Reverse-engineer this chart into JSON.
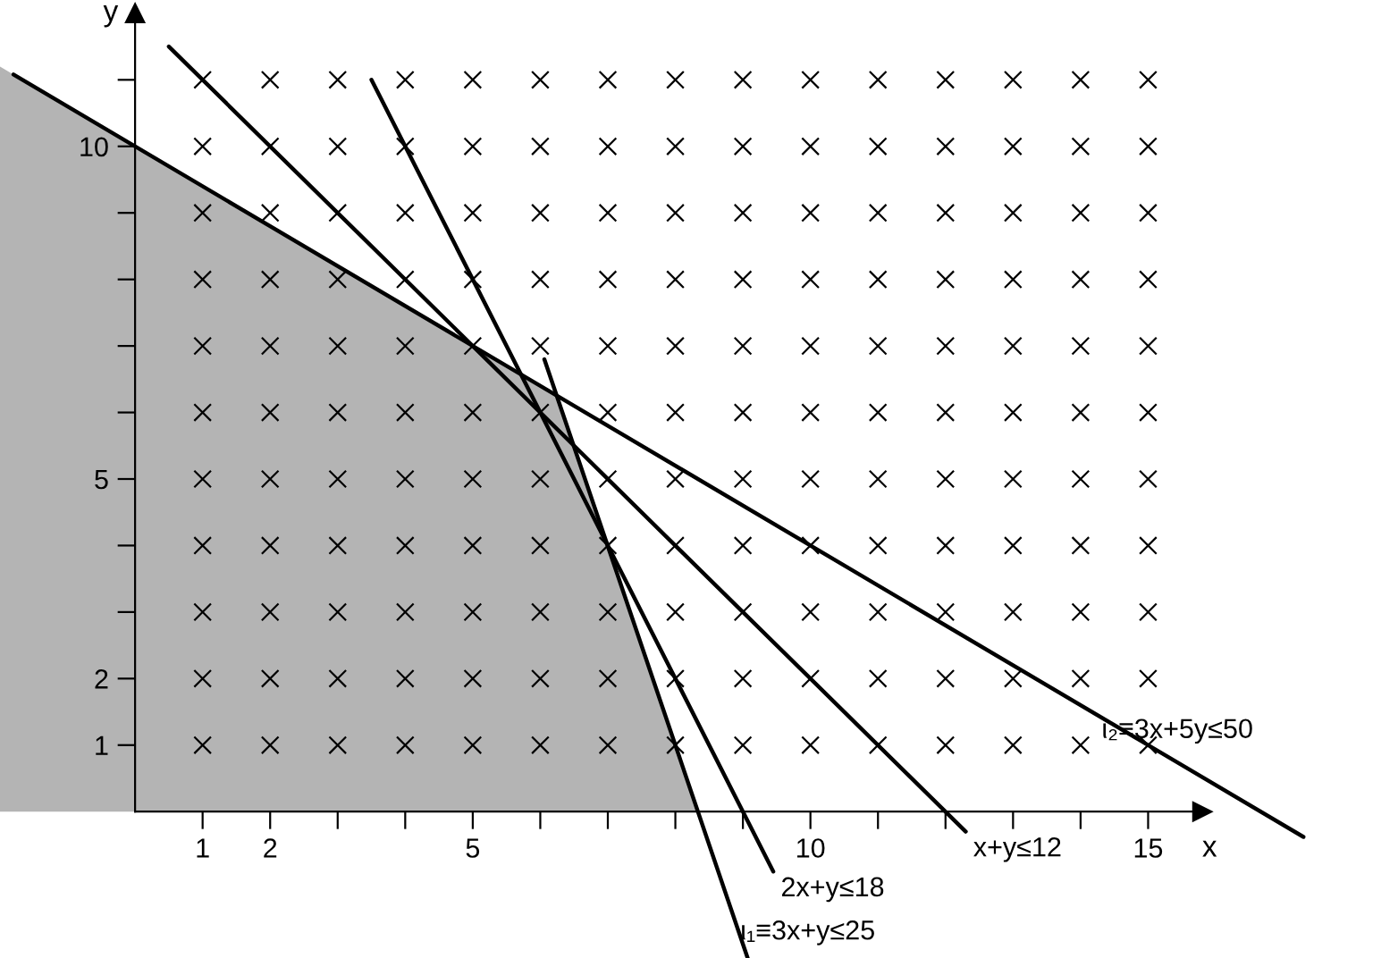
{
  "chart_data": {
    "type": "line",
    "xlabel": "x",
    "ylabel": "y",
    "xlim": [
      -2,
      18.7
    ],
    "ylim": [
      -2.2,
      12.2
    ],
    "xticks": [
      {
        "value": 1,
        "label": "1"
      },
      {
        "value": 2,
        "label": "2"
      },
      {
        "value": 3,
        "label": null
      },
      {
        "value": 4,
        "label": null
      },
      {
        "value": 5,
        "label": "5"
      },
      {
        "value": 6,
        "label": null
      },
      {
        "value": 7,
        "label": null
      },
      {
        "value": 8,
        "label": null
      },
      {
        "value": 9,
        "label": null
      },
      {
        "value": 10,
        "label": "10"
      },
      {
        "value": 11,
        "label": null
      },
      {
        "value": 12,
        "label": null
      },
      {
        "value": 13,
        "label": null
      },
      {
        "value": 14,
        "label": null
      },
      {
        "value": 15,
        "label": "15"
      }
    ],
    "yticks": [
      {
        "value": 1,
        "label": "1"
      },
      {
        "value": 2,
        "label": "2"
      },
      {
        "value": 3,
        "label": null
      },
      {
        "value": 4,
        "label": null
      },
      {
        "value": 5,
        "label": "5"
      },
      {
        "value": 6,
        "label": null
      },
      {
        "value": 7,
        "label": null
      },
      {
        "value": 8,
        "label": null
      },
      {
        "value": 9,
        "label": null
      },
      {
        "value": 10,
        "label": "10"
      },
      {
        "value": 11,
        "label": null
      }
    ],
    "grid": false,
    "series": [
      {
        "type": "area",
        "color": "#b4b4b4",
        "x": [
          -2,
          6.25,
          8.33
        ],
        "values": [
          11.2,
          6.25,
          0
        ]
      },
      {
        "type": "scatter",
        "color": "#000000",
        "marker": "cross",
        "x": [
          1,
          2,
          3,
          4,
          5,
          6,
          7,
          8,
          9,
          10,
          11,
          12,
          13,
          14,
          15,
          1,
          2,
          3,
          4,
          5,
          6,
          7,
          8,
          9,
          10,
          11,
          12,
          13,
          14,
          15,
          1,
          2,
          3,
          4,
          5,
          6,
          7,
          8,
          9,
          10,
          11,
          12,
          13,
          14,
          15,
          1,
          2,
          3,
          4,
          5,
          6,
          7,
          8,
          9,
          10,
          11,
          12,
          13,
          14,
          15,
          1,
          2,
          3,
          4,
          5,
          6,
          7,
          8,
          9,
          10,
          11,
          12,
          13,
          14,
          15,
          1,
          2,
          3,
          4,
          5,
          6,
          7,
          8,
          9,
          10,
          11,
          12,
          13,
          14,
          15,
          1,
          2,
          3,
          4,
          5,
          6,
          7,
          8,
          9,
          10,
          11,
          12,
          13,
          14,
          15,
          1,
          2,
          3,
          4,
          5,
          6,
          7,
          8,
          9,
          10,
          11,
          12,
          13,
          14,
          15,
          1,
          2,
          3,
          4,
          5,
          6,
          7,
          8,
          9,
          10,
          11,
          12,
          13,
          14,
          15,
          1,
          2,
          3,
          4,
          5,
          6,
          7,
          8,
          9,
          10,
          11,
          12,
          13,
          14,
          15,
          1,
          2,
          3,
          4,
          5,
          6,
          7,
          8,
          9,
          10,
          11,
          12,
          13,
          14,
          15
        ],
        "values": [
          1,
          1,
          1,
          1,
          1,
          1,
          1,
          1,
          1,
          1,
          1,
          1,
          1,
          1,
          1,
          2,
          2,
          2,
          2,
          2,
          2,
          2,
          2,
          2,
          2,
          2,
          2,
          2,
          2,
          2,
          3,
          3,
          3,
          3,
          3,
          3,
          3,
          3,
          3,
          3,
          3,
          3,
          3,
          3,
          3,
          4,
          4,
          4,
          4,
          4,
          4,
          4,
          4,
          4,
          4,
          4,
          4,
          4,
          4,
          4,
          5,
          5,
          5,
          5,
          5,
          5,
          5,
          5,
          5,
          5,
          5,
          5,
          5,
          5,
          5,
          6,
          6,
          6,
          6,
          6,
          6,
          6,
          6,
          6,
          6,
          6,
          6,
          6,
          6,
          6,
          7,
          7,
          7,
          7,
          7,
          7,
          7,
          7,
          7,
          7,
          7,
          7,
          7,
          7,
          7,
          8,
          8,
          8,
          8,
          8,
          8,
          8,
          8,
          8,
          8,
          8,
          8,
          8,
          8,
          8,
          9,
          9,
          9,
          9,
          9,
          9,
          9,
          9,
          9,
          9,
          9,
          9,
          9,
          9,
          9,
          10,
          10,
          10,
          10,
          10,
          10,
          10,
          10,
          10,
          10,
          10,
          10,
          10,
          10,
          10,
          11,
          11,
          11,
          11,
          11,
          11,
          11,
          11,
          11,
          11,
          11,
          11,
          11,
          11,
          11
        ]
      },
      {
        "color": "#000000",
        "x": [
          -1.8,
          17.3
        ],
        "values": [
          11.08,
          -0.38
        ]
      },
      {
        "color": "#000000",
        "x": [
          0.5,
          12.3
        ],
        "values": [
          11.5,
          -0.3
        ]
      },
      {
        "color": "#000000",
        "x": [
          3.5,
          9.45
        ],
        "values": [
          11,
          -0.9
        ]
      },
      {
        "color": "#000000",
        "x": [
          6.06,
          9.07
        ],
        "values": [
          6.8,
          -2.2
        ]
      }
    ],
    "annotations": [
      {
        "text": "ι₂≡3x+5y≤50",
        "x": 14.2,
        "y": 1.48
      },
      {
        "text": "x+y≤12",
        "x": 12.3,
        "y": -0.3
      },
      {
        "text": "2x+y≤18",
        "x": 9.45,
        "y": -0.9
      },
      {
        "text": "ι₁≡3x+y≤25",
        "x": 8.85,
        "y": -1.55
      }
    ]
  }
}
